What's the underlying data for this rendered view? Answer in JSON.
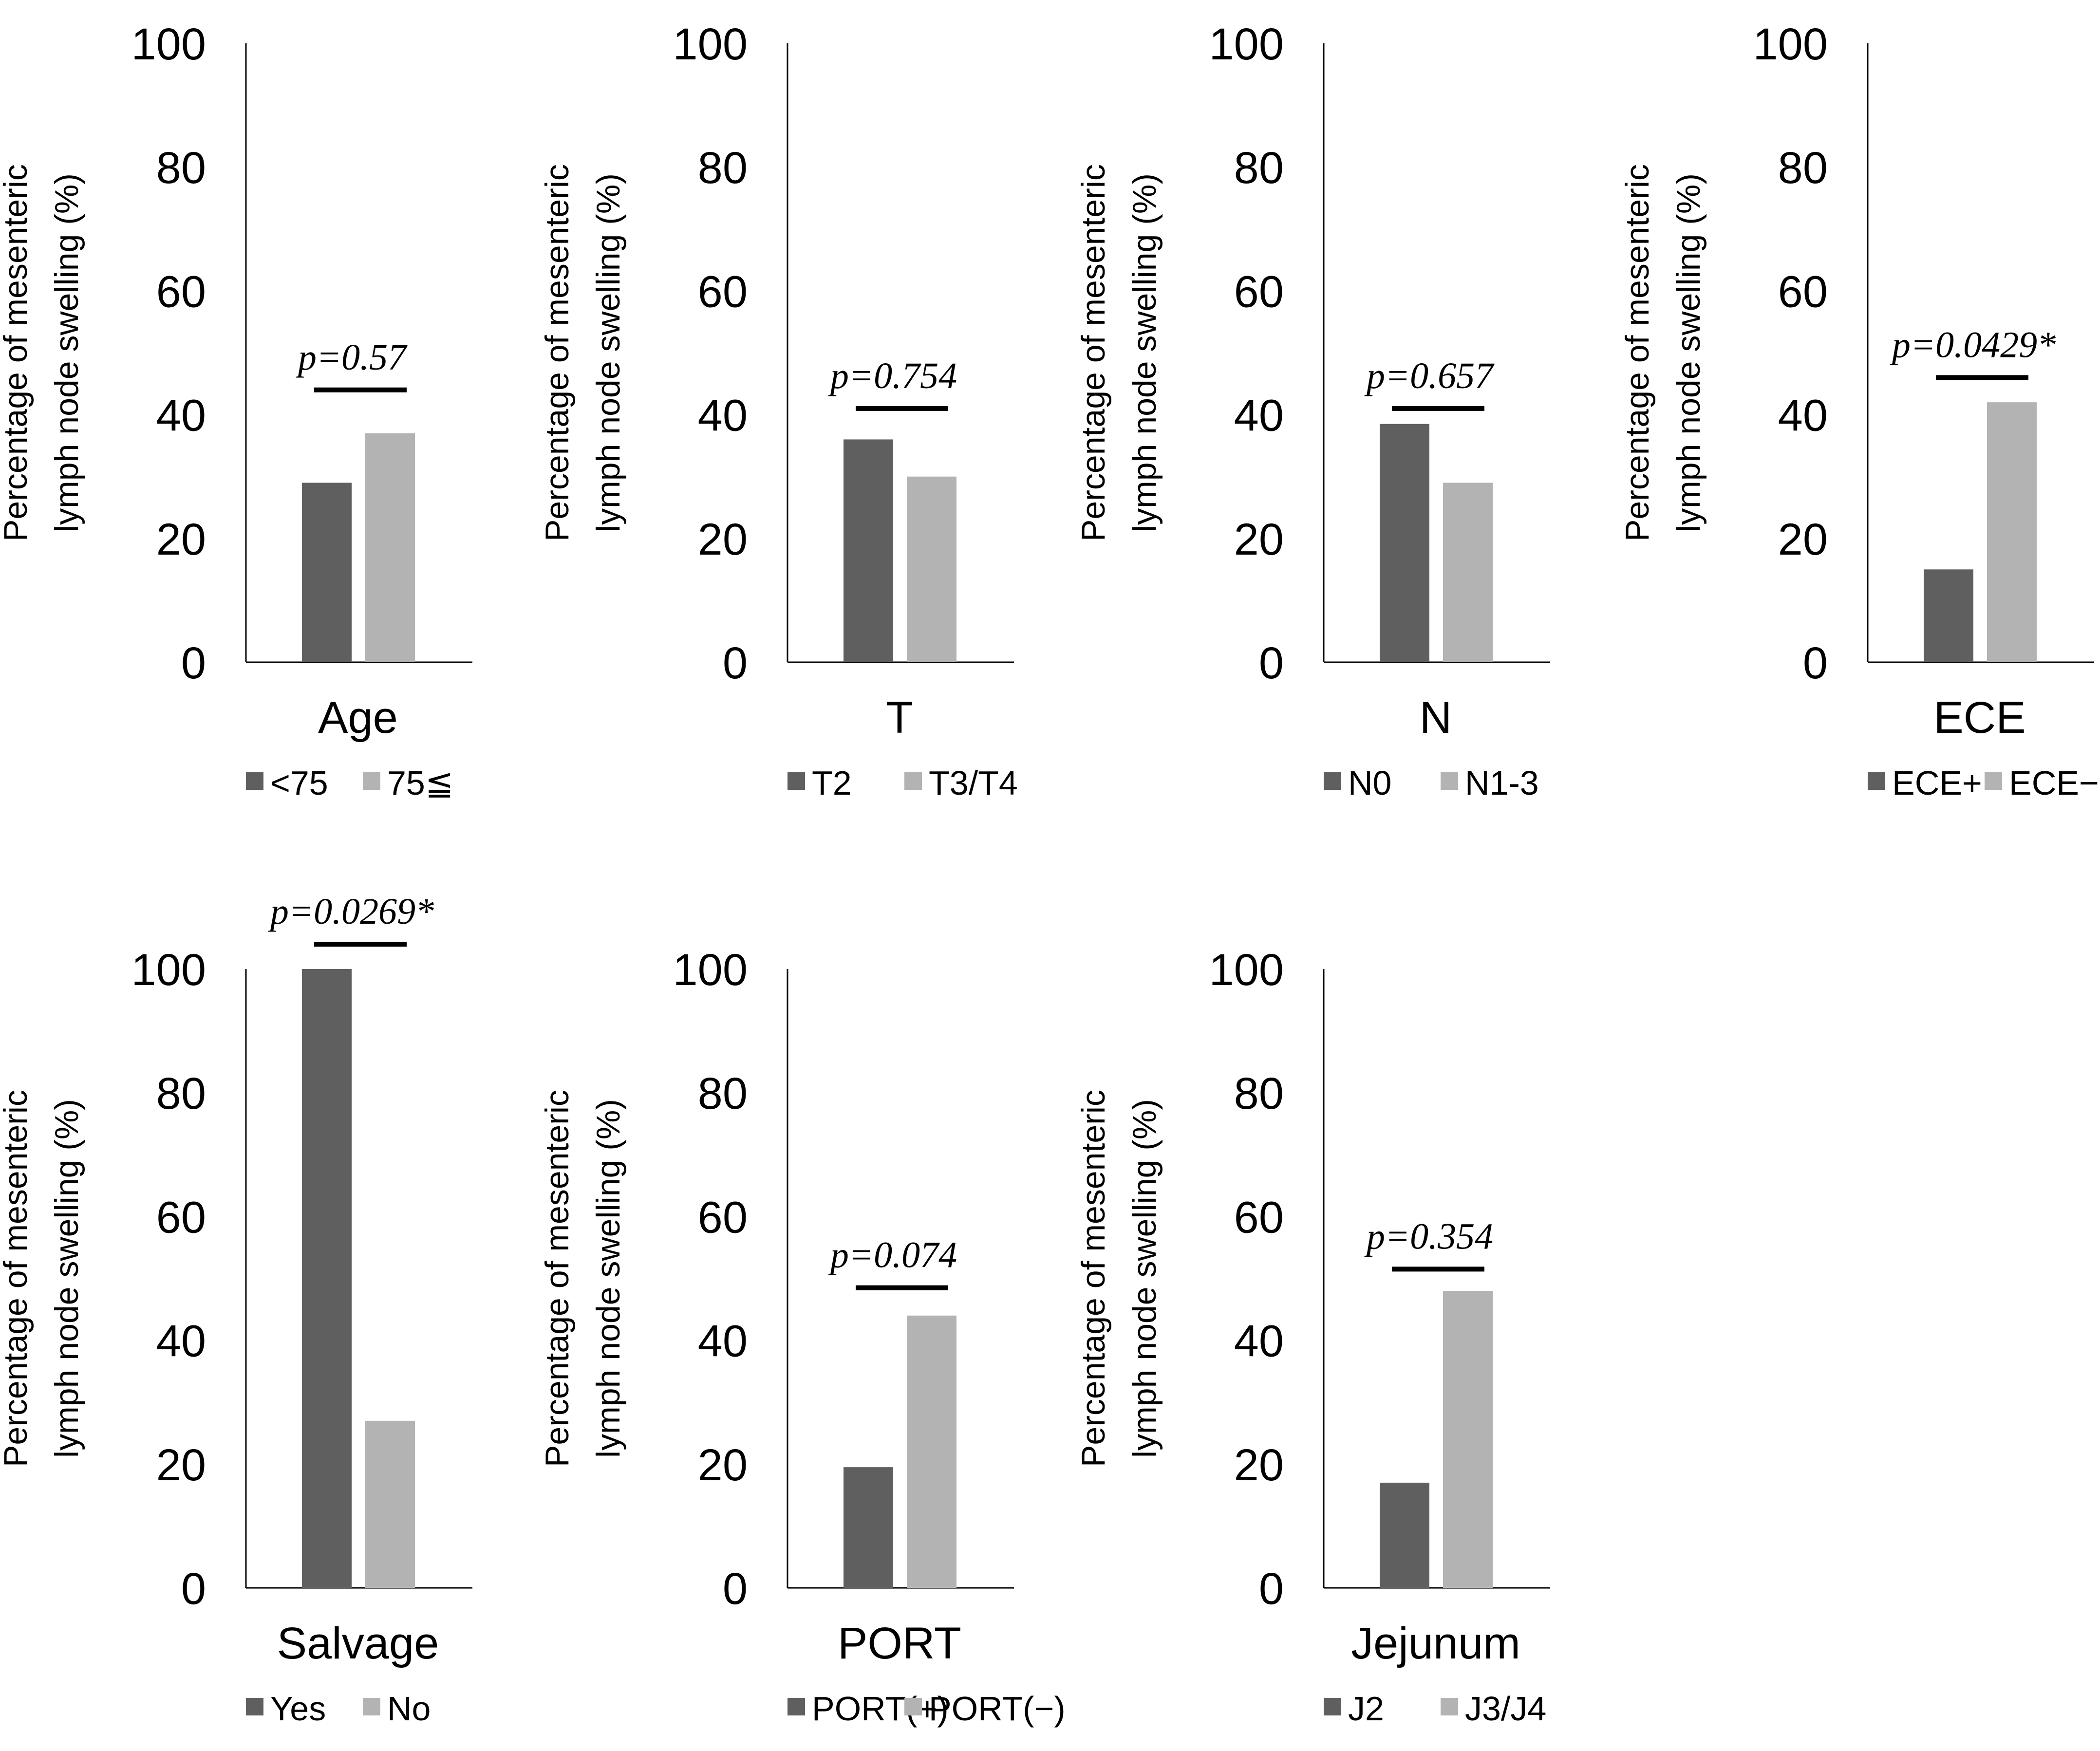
{
  "colors": {
    "series_a": "#5f5f5f",
    "series_b": "#b3b3b3"
  },
  "chart_data": [
    {
      "type": "bar",
      "xlabel": "Age",
      "ylabel": [
        "Percentage of mesenteric",
        "lymph node swelling (%)"
      ],
      "ylim": [
        0,
        100
      ],
      "yticks": [
        "0",
        "20",
        "40",
        "60",
        "80",
        "100"
      ],
      "series": [
        {
          "name": "<75",
          "values": [
            29
          ]
        },
        {
          "name": "75≦",
          "values": [
            37
          ]
        }
      ],
      "p_value": "p=0.57",
      "p_line_y": 44
    },
    {
      "type": "bar",
      "xlabel": "T",
      "ylabel": [
        "Percentage of mesenteric",
        "lymph node swelling (%)"
      ],
      "ylim": [
        0,
        100
      ],
      "yticks": [
        "0",
        "20",
        "40",
        "60",
        "80",
        "100"
      ],
      "series": [
        {
          "name": "T2",
          "values": [
            36
          ]
        },
        {
          "name": "T3/T4",
          "values": [
            30
          ]
        }
      ],
      "p_value": "p=0.754",
      "p_line_y": 41
    },
    {
      "type": "bar",
      "xlabel": "N",
      "ylabel": [
        "Percentage of mesenteric",
        "lymph node swelling (%)"
      ],
      "ylim": [
        0,
        100
      ],
      "yticks": [
        "0",
        "20",
        "40",
        "60",
        "80",
        "100"
      ],
      "series": [
        {
          "name": "N0",
          "values": [
            38.5
          ]
        },
        {
          "name": "N1-3",
          "values": [
            29
          ]
        }
      ],
      "p_value": "p=0.657",
      "p_line_y": 41
    },
    {
      "type": "bar",
      "xlabel": "ECE",
      "ylabel": [
        "Percentage of mesenteric",
        "lymph node swelling (%)"
      ],
      "ylim": [
        0,
        100
      ],
      "yticks": [
        "0",
        "20",
        "40",
        "60",
        "80",
        "100"
      ],
      "series": [
        {
          "name": "ECE+",
          "values": [
            15
          ]
        },
        {
          "name": "ECE−",
          "values": [
            42
          ]
        }
      ],
      "p_value": "p=0.0429*",
      "p_line_y": 46
    },
    {
      "type": "bar",
      "xlabel": "Salvage",
      "ylabel": [
        "Percentage of mesenteric",
        "lymph node swelling (%)"
      ],
      "ylim": [
        0,
        100
      ],
      "yticks": [
        "0",
        "20",
        "40",
        "60",
        "80",
        "100"
      ],
      "series": [
        {
          "name": "Yes",
          "values": [
            100
          ]
        },
        {
          "name": "No",
          "values": [
            27
          ]
        }
      ],
      "p_value": "p=0.0269*",
      "p_line_y": 104
    },
    {
      "type": "bar",
      "xlabel": "PORT",
      "ylabel": [
        "Percentage of mesenteric",
        "lymph node swelling (%)"
      ],
      "ylim": [
        0,
        100
      ],
      "yticks": [
        "0",
        "20",
        "40",
        "60",
        "80",
        "100"
      ],
      "series": [
        {
          "name": "PORT(+)",
          "values": [
            19.5
          ]
        },
        {
          "name": "PORT(−)",
          "values": [
            44
          ]
        }
      ],
      "p_value": "p=0.074",
      "p_line_y": 48.5
    },
    {
      "type": "bar",
      "xlabel": "Jejunum",
      "ylabel": [
        "Percentage of mesenteric",
        "lymph node swelling (%)"
      ],
      "ylim": [
        0,
        100
      ],
      "yticks": [
        "0",
        "20",
        "40",
        "60",
        "80",
        "100"
      ],
      "series": [
        {
          "name": "J2",
          "values": [
            17
          ]
        },
        {
          "name": "J3/J4",
          "values": [
            48
          ]
        }
      ],
      "p_value": "p=0.354",
      "p_line_y": 51.5
    }
  ]
}
